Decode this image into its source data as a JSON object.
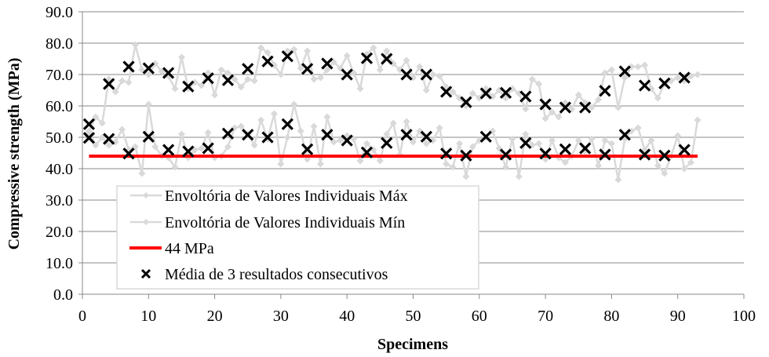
{
  "chart_data": {
    "type": "line",
    "title": "",
    "xlabel": "Specimens",
    "ylabel": "Compressive strength (MPa)",
    "xlim": [
      0,
      100
    ],
    "ylim": [
      0,
      90
    ],
    "x_ticks": [
      "0",
      "10",
      "20",
      "30",
      "40",
      "50",
      "60",
      "70",
      "80",
      "90",
      "100"
    ],
    "y_ticks": [
      "0.0",
      "10.0",
      "20.0",
      "30.0",
      "40.0",
      "50.0",
      "60.0",
      "70.0",
      "80.0",
      "90.0"
    ],
    "grid": "horizontal",
    "legend_position": "inside-lower-left",
    "series": [
      {
        "name": "Envoltória de Valores Individuais Máx",
        "kind": "line-marker-diamond",
        "color": "#d9d9d9",
        "x_start": 1,
        "x_step": 1,
        "values": [
          52.0,
          56.5,
          54.5,
          68.5,
          64.5,
          68.0,
          67.5,
          79.5,
          71.5,
          70.0,
          73.5,
          71.0,
          69.5,
          65.5,
          75.5,
          65.5,
          67.5,
          66.5,
          70.5,
          63.5,
          71.5,
          70.5,
          68.5,
          66.0,
          68.5,
          68.0,
          78.5,
          77.0,
          73.0,
          70.0,
          77.5,
          78.0,
          72.0,
          77.5,
          68.5,
          69.0,
          71.5,
          74.0,
          72.0,
          76.0,
          70.5,
          65.5,
          76.5,
          78.5,
          71.5,
          77.5,
          73.5,
          71.5,
          74.5,
          69.0,
          72.5,
          65.0,
          70.0,
          69.5,
          66.0,
          64.5,
          62.5,
          60.0,
          64.0,
          62.5,
          65.5,
          63.0,
          65.0,
          62.5,
          65.5,
          64.0,
          59.0,
          68.5,
          67.0,
          56.0,
          58.0,
          56.5,
          61.0,
          59.0,
          63.5,
          61.0,
          59.5,
          62.0,
          70.5,
          71.5,
          59.5,
          69.0,
          72.5,
          72.5,
          73.0,
          65.5,
          62.5,
          67.0,
          68.0,
          69.0,
          68.0,
          69.5,
          70.0
        ]
      },
      {
        "name": "Envoltória de Valores Individuais Mín",
        "kind": "line-marker-diamond",
        "color": "#d9d9d9",
        "x_start": 1,
        "x_step": 1,
        "values": [
          51.5,
          47.5,
          50.0,
          47.5,
          48.5,
          52.5,
          46.0,
          47.0,
          38.5,
          60.5,
          47.0,
          44.0,
          43.5,
          40.5,
          51.0,
          43.5,
          46.0,
          46.5,
          51.5,
          43.5,
          44.0,
          47.0,
          53.0,
          53.5,
          51.0,
          47.5,
          55.5,
          49.5,
          57.5,
          41.5,
          50.0,
          60.5,
          52.0,
          43.0,
          53.5,
          41.5,
          56.5,
          48.5,
          49.0,
          50.5,
          49.5,
          42.5,
          48.0,
          46.0,
          42.5,
          51.0,
          54.5,
          44.5,
          55.0,
          48.5,
          52.0,
          48.0,
          49.0,
          53.0,
          41.5,
          40.5,
          48.0,
          37.5,
          47.0,
          49.0,
          50.0,
          52.0,
          46.5,
          40.5,
          49.5,
          37.5,
          51.0,
          47.5,
          48.0,
          43.0,
          49.0,
          43.5,
          42.0,
          44.0,
          49.0,
          45.5,
          49.5,
          41.0,
          49.0,
          48.0,
          36.5,
          49.5,
          52.0,
          53.0,
          46.0,
          49.0,
          41.0,
          38.5,
          44.0,
          50.5,
          40.0,
          42.0,
          55.5
        ]
      },
      {
        "name": "44 MPa",
        "kind": "line",
        "color": "#ff0000",
        "x": [
          1,
          93
        ],
        "values": [
          44.0,
          44.0
        ]
      },
      {
        "name": "Média de 3 resultados consecutivos (upper)",
        "kind": "marker-x",
        "color": "#000000",
        "x": [
          1,
          4,
          7,
          10,
          13,
          16,
          19,
          22,
          25,
          28,
          31,
          34,
          37,
          40,
          43,
          46,
          49,
          52,
          55,
          58,
          61,
          64,
          67,
          70,
          73,
          76,
          79,
          82,
          85,
          88,
          91
        ],
        "values": [
          54.2,
          67.0,
          72.5,
          72.0,
          70.5,
          66.2,
          68.8,
          68.2,
          71.8,
          74.2,
          75.8,
          71.8,
          73.5,
          70.0,
          75.2,
          75.0,
          70.0,
          70.0,
          64.5,
          61.2,
          64.0,
          64.2,
          63.0,
          60.5,
          59.5,
          59.5,
          64.8,
          71.0,
          66.5,
          67.2,
          69.0
        ]
      },
      {
        "name": "Média de 3 resultados consecutivos (lower)",
        "kind": "marker-x",
        "color": "#000000",
        "x": [
          1,
          4,
          7,
          10,
          13,
          16,
          19,
          22,
          25,
          28,
          31,
          34,
          37,
          40,
          43,
          46,
          49,
          52,
          55,
          58,
          61,
          64,
          67,
          70,
          73,
          76,
          79,
          82,
          85,
          88,
          91
        ],
        "values": [
          49.8,
          49.5,
          44.8,
          50.2,
          46.0,
          45.5,
          46.5,
          51.2,
          50.8,
          50.0,
          54.2,
          46.2,
          50.8,
          49.0,
          45.2,
          48.2,
          50.8,
          50.2,
          44.8,
          44.2,
          50.2,
          44.5,
          48.2,
          44.8,
          46.2,
          46.5,
          44.5,
          50.8,
          44.5,
          44.2,
          46.0
        ]
      }
    ],
    "legend": [
      {
        "label": "Envoltória de Valores Individuais Máx",
        "symbol": "line-diamond",
        "color": "#d9d9d9"
      },
      {
        "label": "Envoltória de Valores Individuais Mín",
        "symbol": "line-diamond",
        "color": "#d9d9d9"
      },
      {
        "label": "44 MPa",
        "symbol": "line",
        "color": "#ff0000"
      },
      {
        "label": "Média de 3 resultados consecutivos",
        "symbol": "x",
        "color": "#000000"
      }
    ]
  },
  "colors": {
    "envelope": "#d9d9d9",
    "threshold": "#ff0000",
    "marker": "#000000",
    "grid": "#888888",
    "legend_border": "#d9d9d9"
  }
}
